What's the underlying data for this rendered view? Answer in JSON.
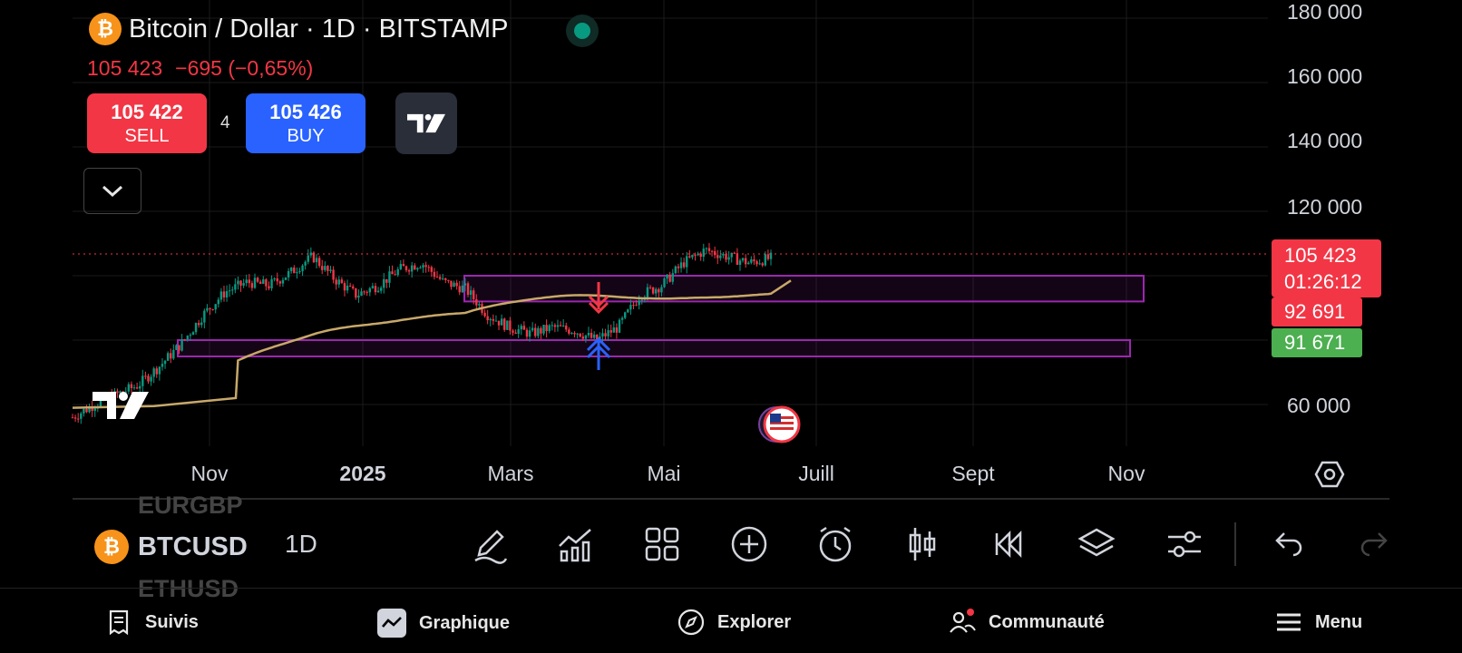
{
  "header": {
    "symbol_logo": "₿",
    "title": "Bitcoin / Dollar · 1D · BITSTAMP",
    "last_price": "105 423",
    "change": "−695 (−0,65%)"
  },
  "trade": {
    "sell_price": "105 422",
    "sell_label": "SELL",
    "spread": "4",
    "buy_price": "105 426",
    "buy_label": "BUY"
  },
  "price_axis": {
    "labels": [
      "180 000",
      "160 000",
      "140 000",
      "120 000",
      "60 000"
    ],
    "current_price": "105 423",
    "countdown": "01:26:12",
    "level_red": "92 691",
    "level_green": "91 671"
  },
  "time_axis": {
    "labels": [
      "Nov",
      "2025",
      "Mars",
      "Mai",
      "Juill",
      "Sept",
      "Nov"
    ]
  },
  "chart_data": {
    "type": "candlestick",
    "title": "Bitcoin / Dollar · 1D · BITSTAMP",
    "ylim": [
      48000,
      182000
    ],
    "current_price": 105423,
    "support_zones": [
      {
        "low": 92000,
        "high": 100000,
        "start": "Feb 2025",
        "end": "Nov 2025"
      },
      {
        "low": 75000,
        "high": 80000,
        "start": "Oct 2024",
        "end": "Nov 2025"
      }
    ],
    "moving_average": "200-day",
    "closes_approx": [
      56000,
      60000,
      63000,
      66000,
      72000,
      79000,
      88000,
      95000,
      98000,
      97000,
      101000,
      106000,
      99000,
      94000,
      97000,
      102000,
      104000,
      98000,
      96000,
      88000,
      84000,
      82000,
      84000,
      83000,
      80000,
      84000,
      94000,
      97000,
      104000,
      108000,
      106000,
      104000,
      105423
    ],
    "colors": {
      "up": "#089981",
      "down": "#f23645",
      "zone": "#9c27b0",
      "ma": "#b39a6b"
    }
  },
  "toolbar": {
    "symbol": "BTCUSD",
    "symbol_above": "EURGBP",
    "symbol_below": "ETHUSD",
    "interval": "1D",
    "tools": [
      "pencil-icon",
      "indicators-icon",
      "grid-icon",
      "add-icon",
      "alarm-icon",
      "candles-icon",
      "replay-icon",
      "layers-icon",
      "settings-sliders-icon",
      "undo-icon",
      "redo-icon"
    ]
  },
  "nav": {
    "watchlist": "Suivis",
    "chart": "Graphique",
    "explore": "Explorer",
    "community": "Communauté",
    "menu": "Menu"
  }
}
